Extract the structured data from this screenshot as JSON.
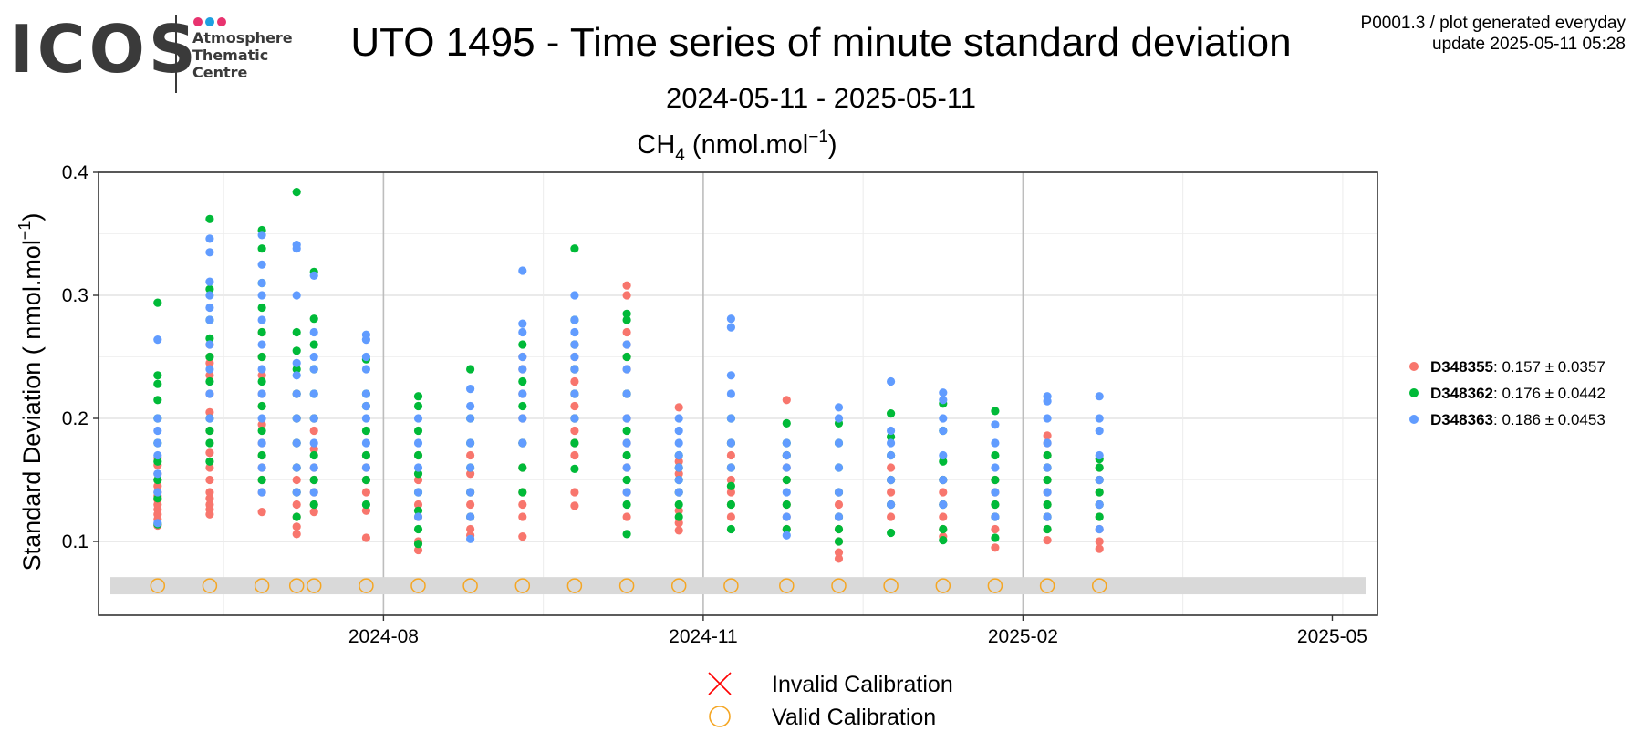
{
  "logo": {
    "wordmark": "ICOS",
    "line1": "Atmosphere",
    "line2": "Thematic",
    "line3": "Centre",
    "dot_colors": [
      "#e8336f",
      "#1ea0e0",
      "#e8336f"
    ]
  },
  "header": {
    "title": "UTO 1495 - Time series of minute standard deviation",
    "subtitle": "2024-05-11 - 2025-05-11",
    "meta_line1": "P0001.3 / plot generated everyday",
    "meta_line2": "update  2025-05-11 05:28"
  },
  "chart_data": {
    "type": "scatter",
    "panel_title_main": "CH",
    "panel_title_sub": "4",
    "panel_title_rest": " (nmol.mol",
    "panel_title_sup": "−1",
    "panel_title_end": ")",
    "ylabel_main": "Standard Deviation ( nmol.mol",
    "ylabel_sup": "−1",
    "ylabel_end": ")",
    "x_ticks": [
      "2024-08",
      "2024-11",
      "2025-02",
      "2025-05"
    ],
    "x_tick_dates": [
      "2024-08-01",
      "2024-11-01",
      "2025-02-01",
      "2025-05-01"
    ],
    "xlim": [
      "2024-05-11",
      "2025-05-14"
    ],
    "y_ticks": [
      0.1,
      0.2,
      0.3,
      0.4
    ],
    "ylim": [
      0.04,
      0.4
    ],
    "grid": true,
    "legend_position": "right",
    "calibration_band": [
      0.057,
      0.071
    ],
    "series": [
      {
        "name": "D348355",
        "stat": ": 0.157 ± 0.0357",
        "color": "#f8766d",
        "points": [
          [
            "2024-05-28",
            [
              0.113,
              0.118,
              0.122,
              0.126,
              0.13,
              0.134,
              0.137,
              0.14,
              0.145,
              0.15,
              0.155,
              0.162,
              0.168
            ]
          ],
          [
            "2024-06-12",
            [
              0.122,
              0.126,
              0.13,
              0.135,
              0.14,
              0.15,
              0.16,
              0.172,
              0.19,
              0.205,
              0.22,
              0.235,
              0.245,
              0.25,
              0.26
            ]
          ],
          [
            "2024-06-27",
            [
              0.124,
              0.14,
              0.15,
              0.16,
              0.17,
              0.18,
              0.195,
              0.21,
              0.22,
              0.235,
              0.25,
              0.27
            ]
          ],
          [
            "2024-07-07",
            [
              0.106,
              0.112,
              0.12,
              0.13,
              0.14,
              0.15,
              0.16,
              0.18,
              0.2,
              0.22
            ]
          ],
          [
            "2024-07-12",
            [
              0.124,
              0.13,
              0.14,
              0.15,
              0.16,
              0.175,
              0.19,
              0.2
            ]
          ],
          [
            "2024-07-27",
            [
              0.103,
              0.125,
              0.14,
              0.15,
              0.16,
              0.17
            ]
          ],
          [
            "2024-08-11",
            [
              0.093,
              0.1,
              0.12,
              0.13,
              0.15,
              0.17
            ]
          ],
          [
            "2024-08-26",
            [
              0.105,
              0.11,
              0.12,
              0.13,
              0.14,
              0.155,
              0.17
            ]
          ],
          [
            "2024-09-10",
            [
              0.104,
              0.12,
              0.13,
              0.14,
              0.16,
              0.18,
              0.2,
              0.22,
              0.24,
              0.25
            ]
          ],
          [
            "2024-09-25",
            [
              0.129,
              0.14,
              0.17,
              0.18,
              0.19,
              0.2,
              0.21,
              0.22,
              0.23,
              0.24,
              0.25,
              0.26
            ]
          ],
          [
            "2024-10-10",
            [
              0.12,
              0.14,
              0.16,
              0.18,
              0.2,
              0.22,
              0.24,
              0.25,
              0.26,
              0.27,
              0.3,
              0.308
            ]
          ],
          [
            "2024-10-25",
            [
              0.109,
              0.115,
              0.125,
              0.14,
              0.155,
              0.165,
              0.209
            ]
          ],
          [
            "2024-11-09",
            [
              0.12,
              0.13,
              0.14,
              0.15,
              0.16,
              0.17,
              0.18
            ]
          ],
          [
            "2024-11-25",
            [
              0.11,
              0.12,
              0.13,
              0.15,
              0.16,
              0.17,
              0.215
            ]
          ],
          [
            "2024-12-10",
            [
              0.086,
              0.091,
              0.1,
              0.11,
              0.12,
              0.13,
              0.14
            ]
          ],
          [
            "2024-12-25",
            [
              0.12,
              0.13,
              0.14,
              0.15,
              0.16
            ]
          ],
          [
            "2025-01-09",
            [
              0.104,
              0.11,
              0.12,
              0.13,
              0.14,
              0.15
            ]
          ],
          [
            "2025-01-24",
            [
              0.095,
              0.11,
              0.12,
              0.13,
              0.14,
              0.15
            ]
          ],
          [
            "2025-02-08",
            [
              0.101,
              0.11,
              0.12,
              0.13,
              0.14,
              0.15,
              0.16,
              0.17,
              0.18,
              0.186
            ]
          ],
          [
            "2025-02-23",
            [
              0.094,
              0.1,
              0.11,
              0.12,
              0.13,
              0.14,
              0.15,
              0.16
            ]
          ]
        ]
      },
      {
        "name": "D348362",
        "stat": ": 0.176 ± 0.0442",
        "color": "#00ba38",
        "points": [
          [
            "2024-05-28",
            [
              0.114,
              0.135,
              0.15,
              0.165,
              0.18,
              0.2,
              0.215,
              0.228,
              0.235,
              0.294
            ]
          ],
          [
            "2024-06-12",
            [
              0.165,
              0.18,
              0.19,
              0.2,
              0.23,
              0.25,
              0.265,
              0.28,
              0.305,
              0.362
            ]
          ],
          [
            "2024-06-27",
            [
              0.15,
              0.17,
              0.19,
              0.21,
              0.23,
              0.25,
              0.27,
              0.29,
              0.31,
              0.338,
              0.353
            ]
          ],
          [
            "2024-07-07",
            [
              0.12,
              0.14,
              0.16,
              0.18,
              0.2,
              0.22,
              0.24,
              0.255,
              0.27,
              0.384
            ]
          ],
          [
            "2024-07-12",
            [
              0.13,
              0.15,
              0.17,
              0.2,
              0.22,
              0.24,
              0.26,
              0.281,
              0.319
            ]
          ],
          [
            "2024-07-27",
            [
              0.13,
              0.15,
              0.17,
              0.19,
              0.21,
              0.22,
              0.248
            ]
          ],
          [
            "2024-08-11",
            [
              0.098,
              0.11,
              0.125,
              0.14,
              0.155,
              0.17,
              0.19,
              0.21,
              0.218
            ]
          ],
          [
            "2024-08-26",
            [
              0.12,
              0.14,
              0.16,
              0.18,
              0.2,
              0.24
            ]
          ],
          [
            "2024-09-10",
            [
              0.14,
              0.16,
              0.18,
              0.21,
              0.23,
              0.26
            ]
          ],
          [
            "2024-09-25",
            [
              0.159,
              0.18,
              0.2,
              0.22,
              0.24,
              0.26,
              0.28,
              0.338
            ]
          ],
          [
            "2024-10-10",
            [
              0.106,
              0.13,
              0.15,
              0.17,
              0.19,
              0.22,
              0.25,
              0.28,
              0.285
            ]
          ],
          [
            "2024-10-25",
            [
              0.12,
              0.13,
              0.14,
              0.15,
              0.16,
              0.17
            ]
          ],
          [
            "2024-11-09",
            [
              0.11,
              0.13,
              0.145,
              0.16,
              0.18,
              0.2
            ]
          ],
          [
            "2024-11-25",
            [
              0.11,
              0.13,
              0.15,
              0.17,
              0.18,
              0.196
            ]
          ],
          [
            "2024-12-10",
            [
              0.1,
              0.11,
              0.12,
              0.14,
              0.16,
              0.18,
              0.196
            ]
          ],
          [
            "2024-12-25",
            [
              0.107,
              0.13,
              0.15,
              0.17,
              0.185,
              0.204
            ]
          ],
          [
            "2025-01-09",
            [
              0.101,
              0.11,
              0.13,
              0.15,
              0.165,
              0.19,
              0.212
            ]
          ],
          [
            "2025-01-24",
            [
              0.103,
              0.12,
              0.13,
              0.15,
              0.17,
              0.206
            ]
          ],
          [
            "2025-02-08",
            [
              0.11,
              0.12,
              0.13,
              0.15,
              0.16,
              0.17
            ]
          ],
          [
            "2025-02-23",
            [
              0.12,
              0.13,
              0.14,
              0.15,
              0.16,
              0.167
            ]
          ]
        ]
      },
      {
        "name": "D348363",
        "stat": ": 0.186 ± 0.0453",
        "color": "#619cff",
        "points": [
          [
            "2024-05-28",
            [
              0.115,
              0.14,
              0.155,
              0.17,
              0.18,
              0.19,
              0.2,
              0.264
            ]
          ],
          [
            "2024-06-12",
            [
              0.2,
              0.22,
              0.24,
              0.26,
              0.28,
              0.29,
              0.3,
              0.311,
              0.335,
              0.346
            ]
          ],
          [
            "2024-06-27",
            [
              0.14,
              0.16,
              0.18,
              0.2,
              0.22,
              0.24,
              0.26,
              0.28,
              0.3,
              0.31,
              0.325,
              0.349
            ]
          ],
          [
            "2024-07-07",
            [
              0.14,
              0.16,
              0.18,
              0.2,
              0.22,
              0.235,
              0.245,
              0.3,
              0.338,
              0.341
            ]
          ],
          [
            "2024-07-12",
            [
              0.14,
              0.16,
              0.18,
              0.2,
              0.22,
              0.24,
              0.25,
              0.27,
              0.316
            ]
          ],
          [
            "2024-07-27",
            [
              0.16,
              0.18,
              0.2,
              0.21,
              0.22,
              0.24,
              0.25,
              0.264,
              0.268
            ]
          ],
          [
            "2024-08-11",
            [
              0.12,
              0.14,
              0.16,
              0.18,
              0.2
            ]
          ],
          [
            "2024-08-26",
            [
              0.102,
              0.12,
              0.14,
              0.16,
              0.18,
              0.2,
              0.21,
              0.224
            ]
          ],
          [
            "2024-09-10",
            [
              0.18,
              0.2,
              0.22,
              0.24,
              0.25,
              0.27,
              0.277,
              0.32
            ]
          ],
          [
            "2024-09-25",
            [
              0.2,
              0.22,
              0.24,
              0.25,
              0.26,
              0.27,
              0.28,
              0.3
            ]
          ],
          [
            "2024-10-10",
            [
              0.14,
              0.16,
              0.18,
              0.2,
              0.22,
              0.24,
              0.26
            ]
          ],
          [
            "2024-10-25",
            [
              0.14,
              0.15,
              0.16,
              0.17,
              0.18,
              0.19,
              0.2
            ]
          ],
          [
            "2024-11-09",
            [
              0.16,
              0.18,
              0.2,
              0.22,
              0.235,
              0.274,
              0.281
            ]
          ],
          [
            "2024-11-25",
            [
              0.105,
              0.12,
              0.14,
              0.16,
              0.17,
              0.18
            ]
          ],
          [
            "2024-12-10",
            [
              0.12,
              0.14,
              0.16,
              0.18,
              0.2,
              0.209
            ]
          ],
          [
            "2024-12-25",
            [
              0.13,
              0.15,
              0.17,
              0.18,
              0.19,
              0.23
            ]
          ],
          [
            "2025-01-09",
            [
              0.13,
              0.15,
              0.17,
              0.19,
              0.2,
              0.215,
              0.221
            ]
          ],
          [
            "2025-01-24",
            [
              0.12,
              0.14,
              0.16,
              0.18,
              0.195
            ]
          ],
          [
            "2025-02-08",
            [
              0.12,
              0.14,
              0.16,
              0.18,
              0.2,
              0.214,
              0.218
            ]
          ],
          [
            "2025-02-23",
            [
              0.11,
              0.13,
              0.15,
              0.17,
              0.19,
              0.2,
              0.218
            ]
          ]
        ]
      }
    ],
    "valid_calibrations": {
      "y": 0.064,
      "color": "#f5a623",
      "dates": [
        "2024-05-28",
        "2024-06-12",
        "2024-06-27",
        "2024-07-07",
        "2024-07-12",
        "2024-07-27",
        "2024-08-11",
        "2024-08-26",
        "2024-09-10",
        "2024-09-25",
        "2024-10-10",
        "2024-10-25",
        "2024-11-09",
        "2024-11-25",
        "2024-12-10",
        "2024-12-25",
        "2025-01-09",
        "2025-01-24",
        "2025-02-08",
        "2025-02-23"
      ]
    },
    "invalid_calibrations": {
      "color": "#ff0000",
      "dates": []
    },
    "bottom_legend": [
      "Invalid Calibration",
      "Valid Calibration"
    ]
  }
}
